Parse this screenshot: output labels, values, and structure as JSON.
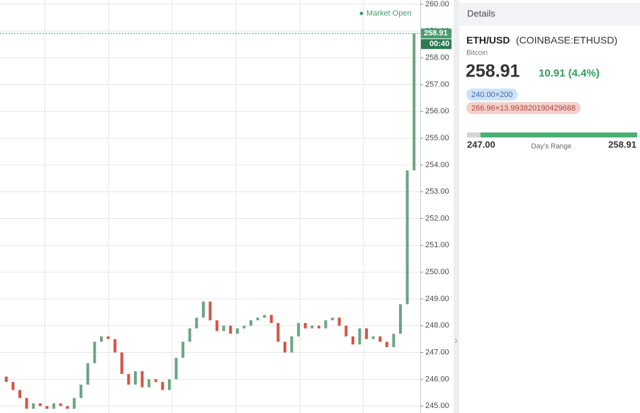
{
  "chart_data": {
    "type": "candlestick",
    "annotation": "Market Open",
    "last_price_label": "258.91",
    "countdown": "00:40",
    "last_price": 258.91,
    "up_color": "#6ba583",
    "down_color": "#d75442",
    "last_price_color": "#4a9a6e",
    "grid": true,
    "ylim": [
      244.74,
      260.16
    ],
    "yticks": [
      {
        "value": 245,
        "label": "245.00"
      },
      {
        "value": 246,
        "label": "246.00"
      },
      {
        "value": 247,
        "label": "247.00"
      },
      {
        "value": 248,
        "label": "248.00"
      },
      {
        "value": 249,
        "label": "249.00"
      },
      {
        "value": 250,
        "label": "250.00"
      },
      {
        "value": 251,
        "label": "251.00"
      },
      {
        "value": 252,
        "label": "252.00"
      },
      {
        "value": 253,
        "label": "253.00"
      },
      {
        "value": 254,
        "label": "254.00"
      },
      {
        "value": 255,
        "label": "255.00"
      },
      {
        "value": 256,
        "label": "256.00"
      },
      {
        "value": 257,
        "label": "257.00"
      },
      {
        "value": 258,
        "label": "258.00"
      },
      {
        "value": 259,
        "label": "259.00"
      },
      {
        "value": 260,
        "label": "260.00"
      }
    ],
    "open": [
      246.1,
      245.9,
      245.6,
      245.3,
      244.9,
      245.1,
      245.0,
      244.9,
      245.1,
      245.0,
      244.9,
      245.3,
      245.8,
      246.6,
      247.4,
      247.6,
      247.5,
      247.0,
      246.2,
      245.8,
      246.3,
      245.7,
      246.0,
      245.9,
      245.6,
      246.0,
      246.8,
      247.4,
      247.9,
      248.3,
      248.9,
      248.2,
      247.8,
      248.0,
      247.7,
      247.9,
      248.0,
      248.2,
      248.3,
      248.4,
      248.1,
      247.4,
      247.0,
      247.6,
      248.1,
      247.9,
      248.0,
      247.9,
      248.2,
      248.3,
      248.0,
      247.6,
      247.3,
      247.9,
      247.5,
      247.6,
      247.4,
      247.2,
      247.7,
      248.8,
      253.8
    ],
    "close": [
      245.9,
      245.6,
      245.3,
      244.9,
      245.1,
      245.0,
      244.9,
      245.1,
      245.0,
      244.9,
      245.3,
      245.8,
      246.6,
      247.4,
      247.6,
      247.5,
      247.0,
      246.2,
      245.8,
      246.3,
      245.7,
      246.0,
      245.9,
      245.6,
      246.0,
      246.8,
      247.4,
      247.9,
      248.3,
      248.9,
      248.2,
      247.8,
      248.0,
      247.7,
      247.9,
      248.0,
      248.2,
      248.3,
      248.4,
      248.1,
      247.4,
      247.0,
      247.6,
      248.1,
      247.9,
      248.0,
      247.9,
      248.2,
      248.3,
      248.0,
      247.6,
      247.3,
      247.9,
      247.5,
      247.6,
      247.4,
      247.2,
      247.7,
      248.8,
      253.8,
      258.91
    ]
  },
  "details": {
    "header": "Details",
    "symbol": "ETH/USD",
    "exchange": "(COINBASE:ETHUSD)",
    "description": "Bitcoin",
    "price": "258.91",
    "change": "10.91 (4.4%)",
    "bid": "240.00×200",
    "ask": "266.96×13.993820190429688",
    "range_low": "247.00",
    "range_label": "Day's Range",
    "range_high": "258.91"
  }
}
